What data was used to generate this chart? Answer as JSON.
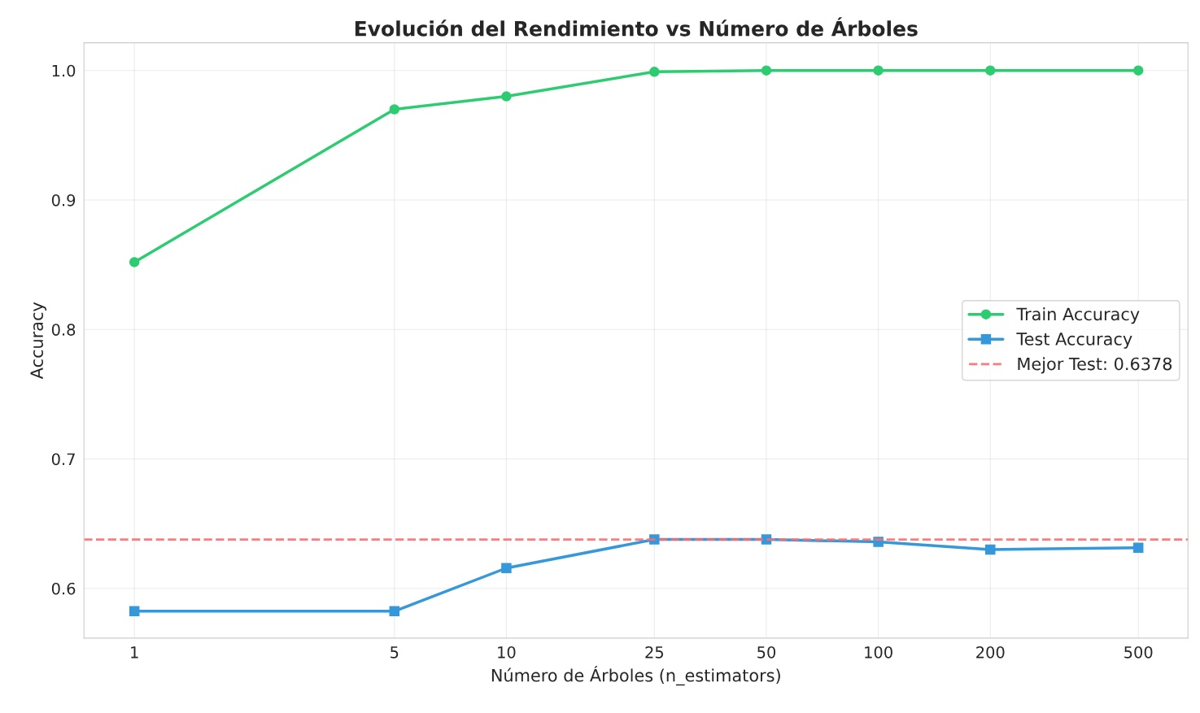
{
  "chart_data": {
    "type": "line",
    "title": "Evolución del Rendimiento vs Número de Árboles",
    "xlabel": "Número de Árboles (n_estimators)",
    "ylabel": "Accuracy",
    "x": [
      1,
      5,
      10,
      25,
      50,
      100,
      200,
      500
    ],
    "series": [
      {
        "name": "Train Accuracy",
        "color": "#2ecc71",
        "marker": "circle",
        "values": [
          0.852,
          0.97,
          0.98,
          0.999,
          1.0,
          1.0,
          1.0,
          1.0
        ]
      },
      {
        "name": "Test Accuracy",
        "color": "#3498db",
        "marker": "square",
        "values": [
          0.5824,
          0.5824,
          0.6157,
          0.6378,
          0.6378,
          0.636,
          0.63,
          0.6314
        ]
      }
    ],
    "ref_lines": [
      {
        "axis": "y",
        "value": 0.6378,
        "label": "Mejor Test: 0.6378",
        "color": "#ff6b6b",
        "line_style": "dashed"
      }
    ],
    "log": "x",
    "xlim": [
      0.732,
      680
    ],
    "xticks": [
      1,
      5,
      10,
      25,
      50,
      100,
      200,
      500
    ],
    "ylim": [
      0.5616,
      1.0214
    ],
    "yticks": [
      {
        "value": 0.6,
        "label": "0.6"
      },
      {
        "value": 0.7,
        "label": "0.7"
      },
      {
        "value": 0.8,
        "label": "0.8"
      },
      {
        "value": 0.9,
        "label": "0.9"
      },
      {
        "value": 1.0,
        "label": "1.0"
      }
    ],
    "grid": true,
    "legend": "right",
    "line_style": "solid"
  }
}
